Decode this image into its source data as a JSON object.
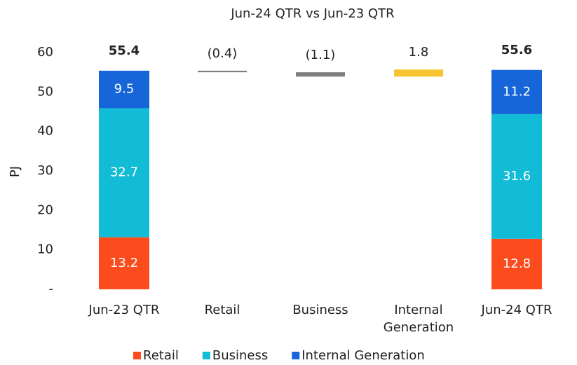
{
  "chart_data": {
    "type": "waterfall",
    "title": "Jun-24 QTR vs Jun-23 QTR",
    "y_label": "PJ",
    "categories": [
      "Jun-23 QTR",
      "Retail",
      "Business",
      "Internal Generation",
      "Jun-24 QTR"
    ],
    "series": [
      {
        "name": "Retail",
        "color": "#fc4c1e",
        "values": [
          13.2,
          null,
          null,
          null,
          12.8
        ]
      },
      {
        "name": "Business",
        "color": "#12bcd6",
        "values": [
          32.7,
          null,
          null,
          null,
          31.6
        ]
      },
      {
        "name": "Internal Generation",
        "color": "#1766d9",
        "values": [
          9.5,
          null,
          null,
          null,
          11.2
        ]
      }
    ],
    "totals": {
      "values": [
        55.4,
        null,
        null,
        null,
        55.6
      ]
    },
    "changes": {
      "values": [
        null,
        -0.4,
        -1.1,
        1.8,
        null
      ],
      "value_labels": [
        null,
        "(0.4)",
        "(1.1)",
        "1.8",
        null
      ],
      "colors": [
        null,
        "#7f7f7f",
        "#7f7f7f",
        "#f7c431",
        null
      ]
    },
    "ylim": [
      0,
      60
    ],
    "yticks": [
      {
        "value": 0,
        "label": "-"
      },
      10,
      20,
      30,
      40,
      50,
      60
    ],
    "legend": "bottom"
  }
}
